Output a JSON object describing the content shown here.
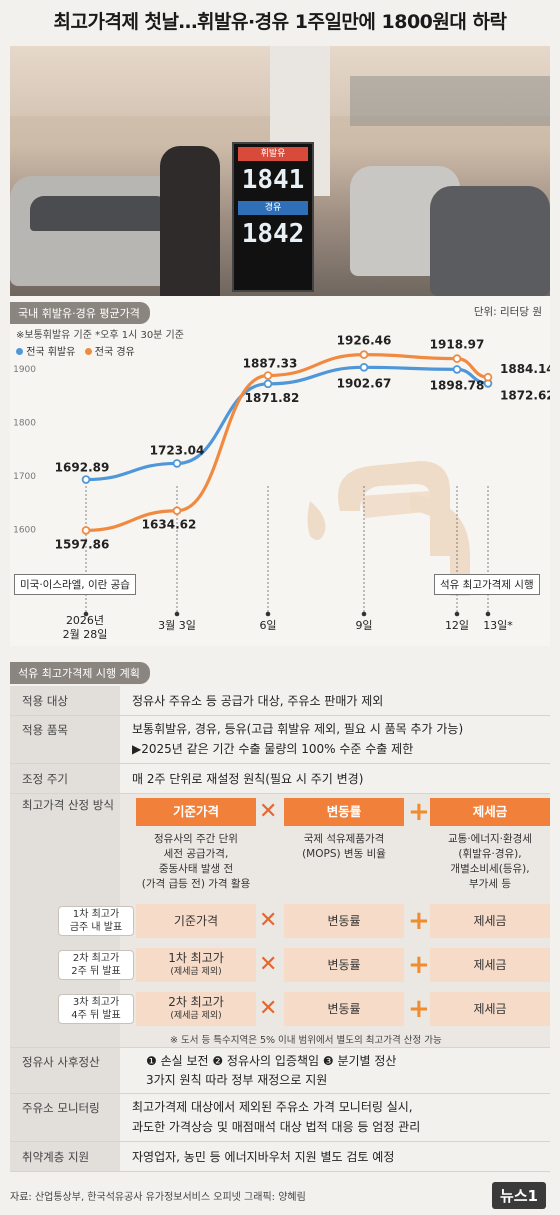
{
  "header": {
    "title": "최고가격제 첫날…휘발유·경유 1주일만에 1800원대 하락"
  },
  "photo": {
    "sign_label_gasoline": "휘발유",
    "sign_price_gasoline": "1841",
    "sign_label_diesel": "경유",
    "sign_price_diesel": "1842"
  },
  "chart_section": {
    "tag": "국내 휘발유·경유 평균가격",
    "unit": "단위: 리터당 원",
    "note": "※보통휘발유 기준  *오후 1시 30분 기준",
    "legend_gasoline": "전국 휘발유",
    "legend_diesel": "전국 경유",
    "annotation_left": "미국·이스라엘, 이란 공습",
    "annotation_right": "석유 최고가격제 시행",
    "x_label_first_line1": "2026년",
    "x_label_first_line2": "2월 28일"
  },
  "chart_data": {
    "type": "line",
    "title": "국내 휘발유·경유 평균가격",
    "ylabel": "",
    "xlabel": "",
    "ylim": [
      1550,
      1950
    ],
    "yticks": [
      1600,
      1700,
      1800,
      1900
    ],
    "x": [
      "2월 28일",
      "3월 3일",
      "6일",
      "9일",
      "12일",
      "13일*"
    ],
    "x_tick_labels": [
      "",
      "3월 3일",
      "6일",
      "9일",
      "12일",
      "13일*"
    ],
    "series": [
      {
        "name": "전국 휘발유",
        "color": "#4f97d8",
        "values": [
          1692.89,
          1723.04,
          1871.82,
          1902.67,
          1898.78,
          1872.62
        ]
      },
      {
        "name": "전국 경유",
        "color": "#f08a40",
        "values": [
          1597.86,
          1634.62,
          1887.33,
          1926.46,
          1918.97,
          1884.14
        ]
      }
    ],
    "grid": false,
    "legend_position": "top-left"
  },
  "plan": {
    "tag": "석유 최고가격제 시행 계획",
    "rows": {
      "target": {
        "label": "적용 대상",
        "text": "정유사 주유소 등 공급가 대상, 주유소 판매가 제외"
      },
      "items": {
        "label": "적용 품목",
        "line1": "보통휘발유, 경유, 등유(고급 휘발유 제외, 필요 시 품목 추가 가능)",
        "line2": "▶2025년 같은 기간 수출 물량의 100% 수준 수출 제한"
      },
      "cycle": {
        "label": "조정 주기",
        "text": "매 2주 단위로 재설정 원칙(필요 시 주기 변경)"
      },
      "method": {
        "label": "최고가격 산정 방식"
      },
      "settle": {
        "label": "정유사 사후정산",
        "line1": "❶ 손실 보전  ❷ 정유사의 입증책임  ❸ 분기별 정산",
        "line2": "3가지 원칙 따라 정부 재정으로 지원"
      },
      "monitor": {
        "label": "주유소 모니터링",
        "line1": "최고가격제 대상에서 제외된 주유소 가격 모니터링 실시,",
        "line2": "과도한 가격상승 및 매점매석 대상 법적 대응 등 엄정 관리"
      },
      "support": {
        "label": "취약계층 지원",
        "text": "자영업자, 농민 등 에너지바우처 지원 별도 검토 예정"
      }
    },
    "formula": {
      "base": "기준가격",
      "change": "변동률",
      "tax": "제세금",
      "base_desc": [
        "정유사의 주간 단위",
        "세전 공급가격,",
        "중동사태 발생 전",
        "(가격 급등 전) 가격 활용"
      ],
      "change_desc": [
        "국제 석유제품가격",
        "(MOPS) 변동 비율"
      ],
      "tax_desc": [
        "교통·에너지·환경세",
        "(휘발유·경유),",
        "개별소비세(등유),",
        "부가세 등"
      ]
    },
    "steps": [
      {
        "line1": "1차 최고가",
        "line2": "금주 내 발표",
        "first": "기준가격",
        "first_sub": "",
        "second": "변동률",
        "third": "제세금"
      },
      {
        "line1": "2차 최고가",
        "line2": "2주 뒤 발표",
        "first": "1차 최고가",
        "first_sub": "(제세금 제외)",
        "second": "변동률",
        "third": "제세금"
      },
      {
        "line1": "3차 최고가",
        "line2": "4주 뒤 발표",
        "first": "2차 최고가",
        "first_sub": "(제세금 제외)",
        "second": "변동률",
        "third": "제세금"
      }
    ],
    "footnote": "※ 도서 등 특수지역은 5% 이내 범위에서 별도의 최고가격 산정 가능"
  },
  "footer": {
    "source": "자료: 산업통상부, 한국석유공사 유가정보서비스 오피넷   그래픽: 양혜림",
    "logo": "뉴스1"
  }
}
